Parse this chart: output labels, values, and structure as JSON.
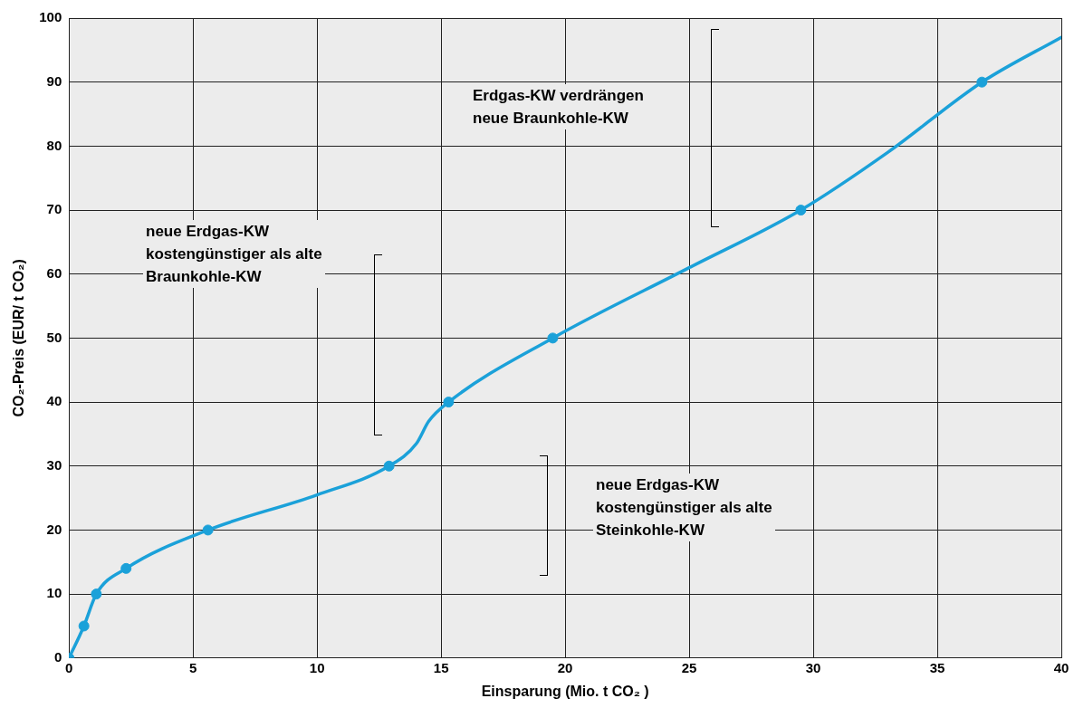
{
  "chart_data": {
    "type": "line",
    "xlabel": "Einsparung (Mio. t CO₂ )",
    "ylabel": "CO₂-Preis (EUR/ t CO₂)",
    "xlim": [
      0,
      40
    ],
    "xticks": [
      0,
      5,
      10,
      15,
      20,
      25,
      30,
      35,
      40
    ],
    "ylim": [
      0,
      100
    ],
    "yticks": [
      0,
      10,
      20,
      30,
      40,
      50,
      60,
      70,
      80,
      90,
      100
    ],
    "grid": true,
    "legend": false,
    "series": [
      {
        "color": "#1ba1d9",
        "marker": "none",
        "line_style": "solid",
        "x": [
          0,
          0.6,
          1.1,
          2.3,
          5.6,
          10,
          12.9,
          14,
          14.5,
          15.3,
          19.5,
          25,
          29.5,
          33,
          36.8,
          40
        ],
        "values": [
          0,
          5,
          10,
          14,
          20,
          25.5,
          30,
          33.5,
          37,
          40,
          50,
          61,
          70,
          79,
          90,
          97
        ]
      },
      {
        "type": "scatter",
        "color": "#1ba1d9",
        "marker": "circle",
        "x": [
          0,
          0.6,
          1.1,
          2.3,
          5.6,
          12.9,
          15.3,
          19.5,
          29.5,
          36.8
        ],
        "values": [
          0,
          5,
          10,
          14,
          20,
          30,
          40,
          50,
          70,
          90
        ]
      }
    ],
    "annotations": [
      "Erdgas-KW verdrängen\nneue Braunkohle-KW",
      "neue Erdgas-KW\nkostengünstiger als alte\nBraunkohle-KW",
      "neue Erdgas-KW\nkostengünstiger als alte\nSteinkohle-KW"
    ]
  }
}
